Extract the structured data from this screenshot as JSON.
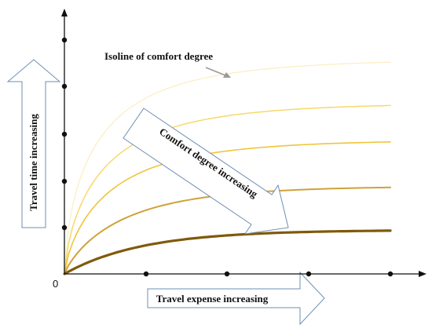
{
  "labels": {
    "origin": "0",
    "isoline_label": "Isoline of comfort degree",
    "y_arrow_text": "Travel time increasing",
    "x_arrow_text": "Travel expense increasing",
    "diag_arrow_text": "Comfort degree increasing"
  },
  "colors": {
    "axis": "#111111",
    "arrow_stroke": "#6e8fb5",
    "pointer": "#9a9a9a",
    "isolines": [
      "#fbeec0",
      "#f6d96a",
      "#f0c53c",
      "#cfa23a",
      "#7f5a0c"
    ]
  },
  "isolines": [
    {
      "id": "isoline-1",
      "plateau": 0.93,
      "shape": 0.65,
      "stroke": 1.2
    },
    {
      "id": "isoline-2",
      "plateau": 0.74,
      "shape": 0.7,
      "stroke": 1.5
    },
    {
      "id": "isoline-3",
      "plateau": 0.58,
      "shape": 0.75,
      "stroke": 1.6
    },
    {
      "id": "isoline-4",
      "plateau": 0.38,
      "shape": 0.85,
      "stroke": 2.0
    },
    {
      "id": "isoline-5",
      "plateau": 0.19,
      "shape": 1.0,
      "stroke": 3.2
    }
  ]
}
